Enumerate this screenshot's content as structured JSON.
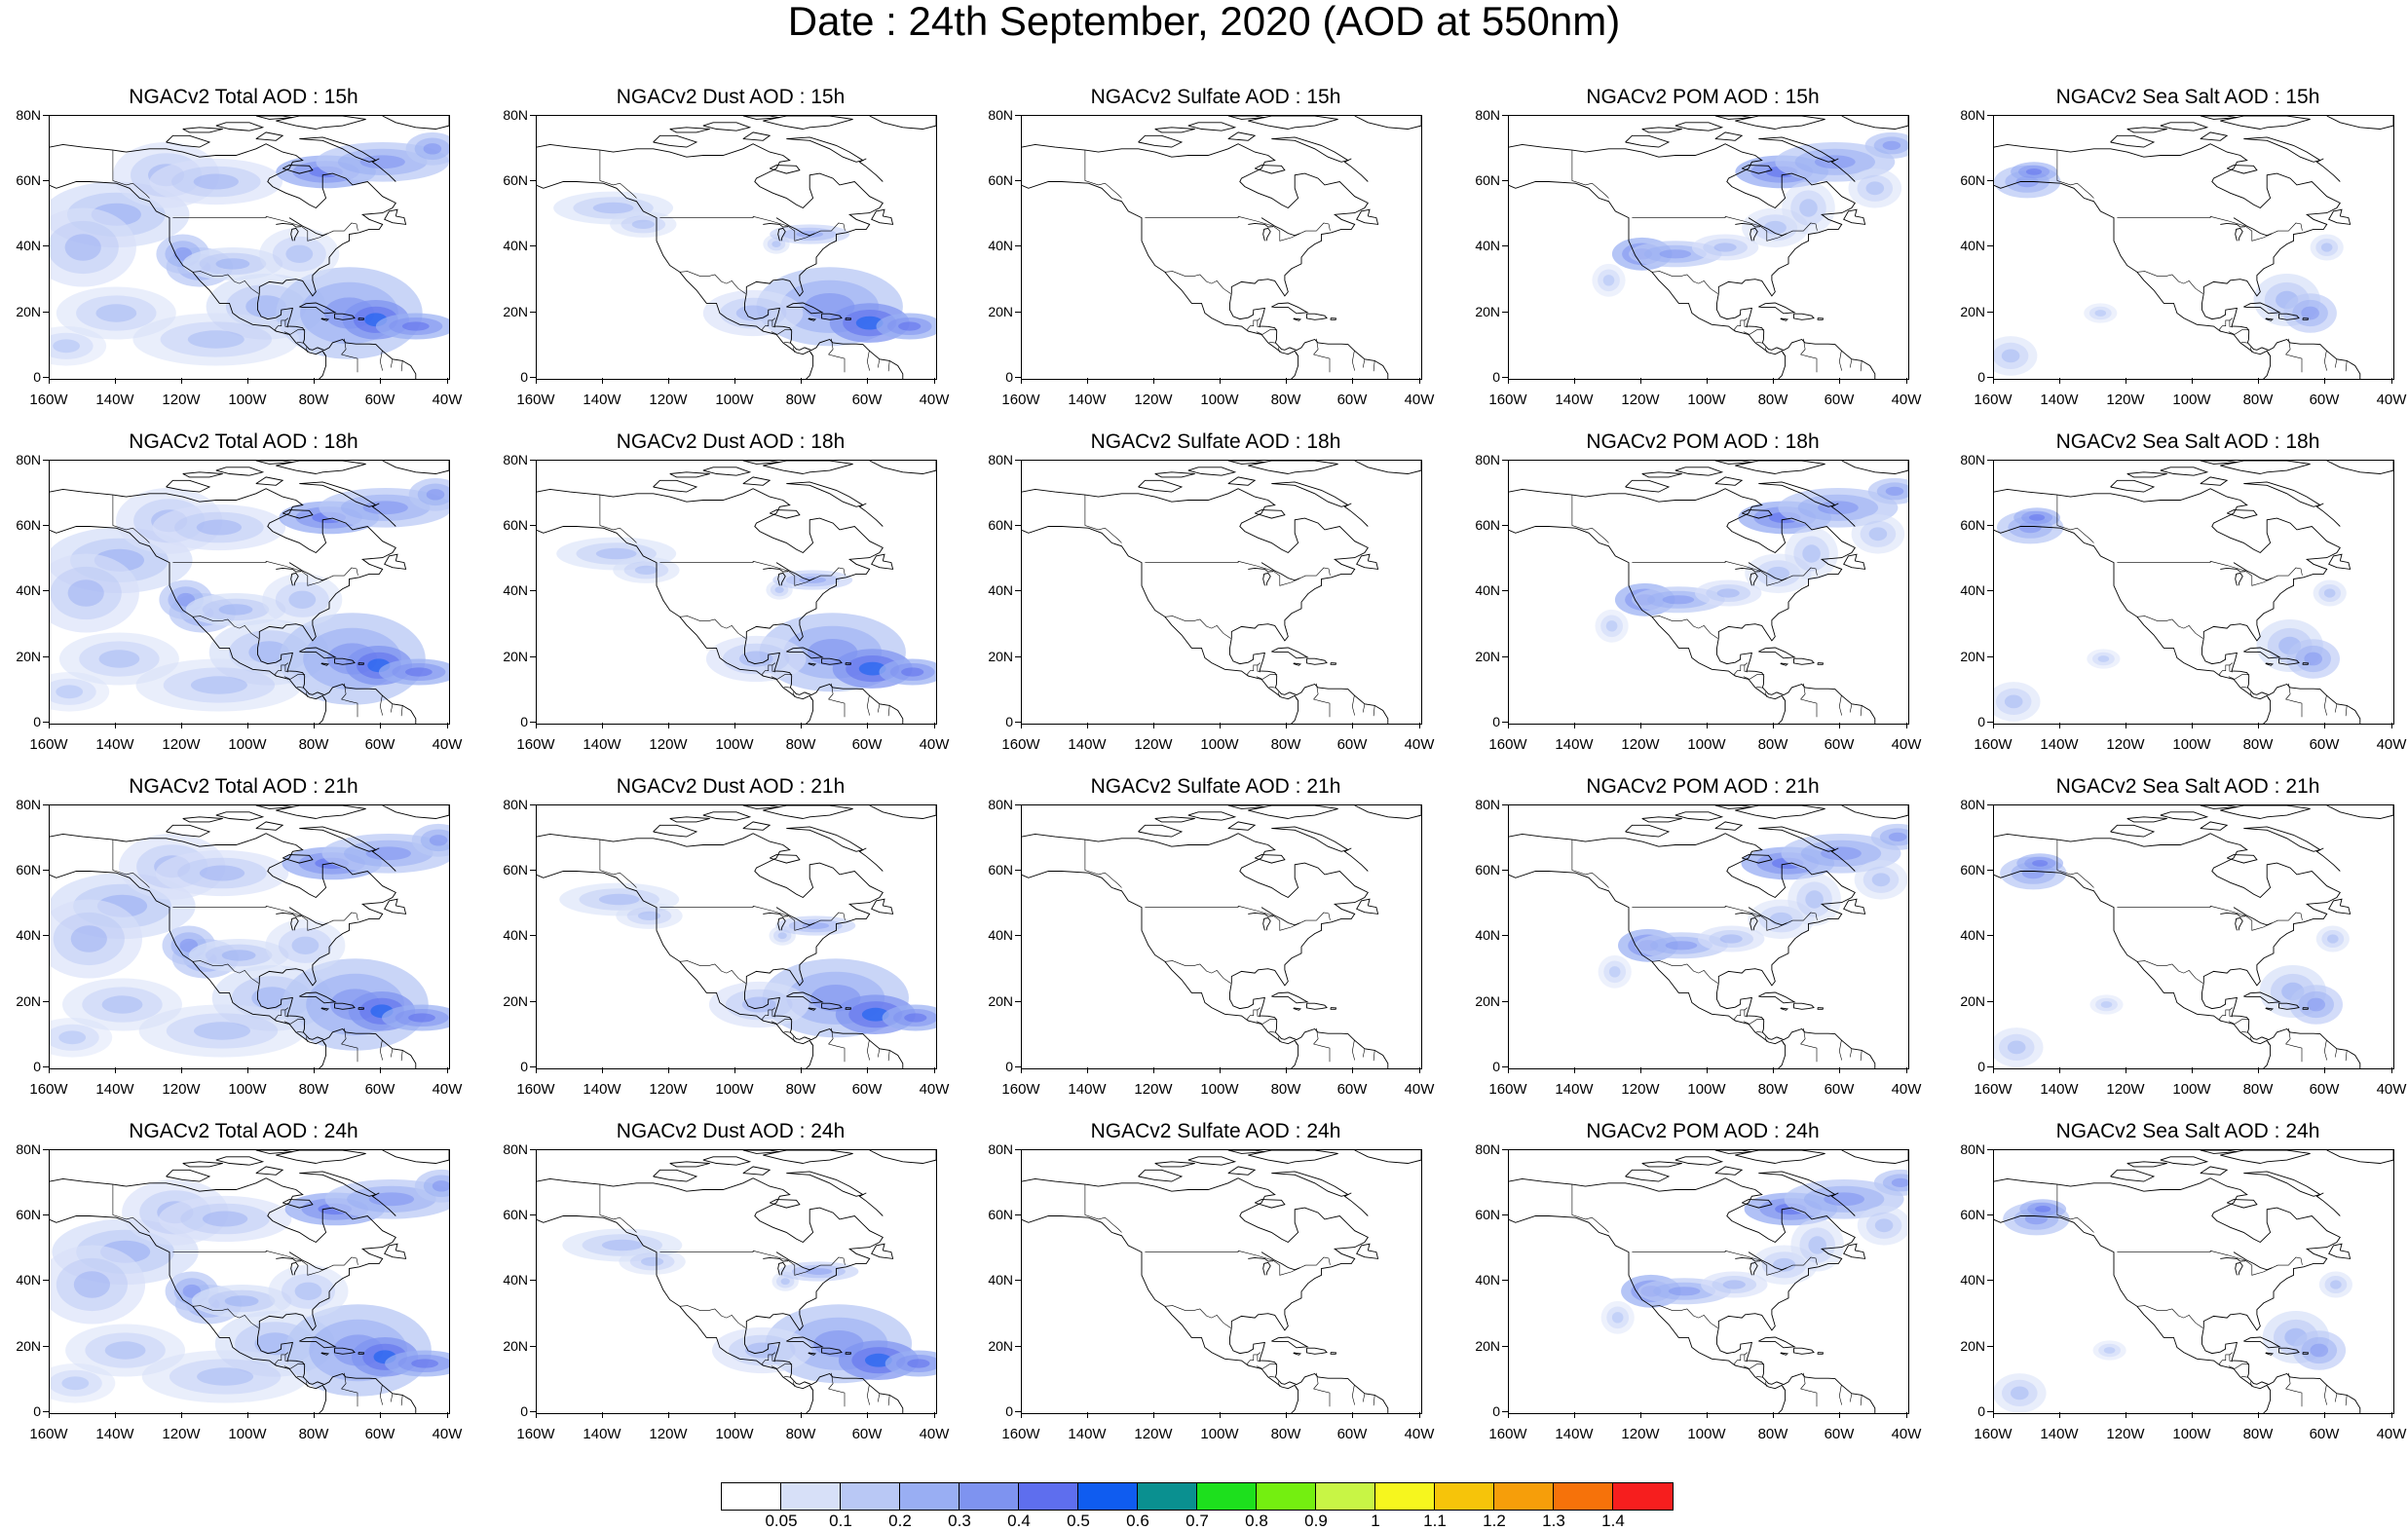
{
  "title": "Date : 24th September, 2020 (AOD at 550nm)",
  "lat_labels": [
    "80N",
    "60N",
    "40N",
    "20N",
    "0"
  ],
  "lon_labels": [
    "160W",
    "140W",
    "120W",
    "100W",
    "80W",
    "60W",
    "40W"
  ],
  "panels": [
    {
      "title": "NGACv2 Total AOD : 15h",
      "species": "total",
      "hour": 15
    },
    {
      "title": "NGACv2 Dust AOD : 15h",
      "species": "dust",
      "hour": 15
    },
    {
      "title": "NGACv2 Sulfate AOD : 15h",
      "species": "sulfate",
      "hour": 15
    },
    {
      "title": "NGACv2 POM AOD : 15h",
      "species": "pom",
      "hour": 15
    },
    {
      "title": "NGACv2 Sea Salt AOD : 15h",
      "species": "seasalt",
      "hour": 15
    },
    {
      "title": "NGACv2 Total AOD : 18h",
      "species": "total",
      "hour": 18
    },
    {
      "title": "NGACv2 Dust AOD : 18h",
      "species": "dust",
      "hour": 18
    },
    {
      "title": "NGACv2 Sulfate AOD : 18h",
      "species": "sulfate",
      "hour": 18
    },
    {
      "title": "NGACv2 POM AOD : 18h",
      "species": "pom",
      "hour": 18
    },
    {
      "title": "NGACv2 Sea Salt AOD : 18h",
      "species": "seasalt",
      "hour": 18
    },
    {
      "title": "NGACv2 Total AOD : 21h",
      "species": "total",
      "hour": 21
    },
    {
      "title": "NGACv2 Dust AOD : 21h",
      "species": "dust",
      "hour": 21
    },
    {
      "title": "NGACv2 Sulfate AOD : 21h",
      "species": "sulfate",
      "hour": 21
    },
    {
      "title": "NGACv2 POM AOD : 21h",
      "species": "pom",
      "hour": 21
    },
    {
      "title": "NGACv2 Sea Salt AOD : 21h",
      "species": "seasalt",
      "hour": 21
    },
    {
      "title": "NGACv2 Total AOD : 24h",
      "species": "total",
      "hour": 24
    },
    {
      "title": "NGACv2 Dust AOD : 24h",
      "species": "dust",
      "hour": 24
    },
    {
      "title": "NGACv2 Sulfate AOD : 24h",
      "species": "sulfate",
      "hour": 24
    },
    {
      "title": "NGACv2 POM AOD : 24h",
      "species": "pom",
      "hour": 24
    },
    {
      "title": "NGACv2 Sea Salt  AOD : 24h",
      "species": "seasalt",
      "hour": 24
    }
  ],
  "colorbar": {
    "colors": [
      "#ffffff",
      "#d7e0f8",
      "#b9c8f5",
      "#99aef3",
      "#7e93f0",
      "#5e6eee",
      "#0f5cf0",
      "#0a9090",
      "#1de01d",
      "#74ef10",
      "#c8f545",
      "#f6f61e",
      "#f6c40a",
      "#f69e0a",
      "#f6720a",
      "#f61e1e"
    ],
    "labels": [
      "0.05",
      "0.1",
      "0.2",
      "0.3",
      "0.4",
      "0.5",
      "0.6",
      "0.7",
      "0.8",
      "0.9",
      "1",
      "1.1",
      "1.2",
      "1.3",
      "1.4"
    ]
  }
}
